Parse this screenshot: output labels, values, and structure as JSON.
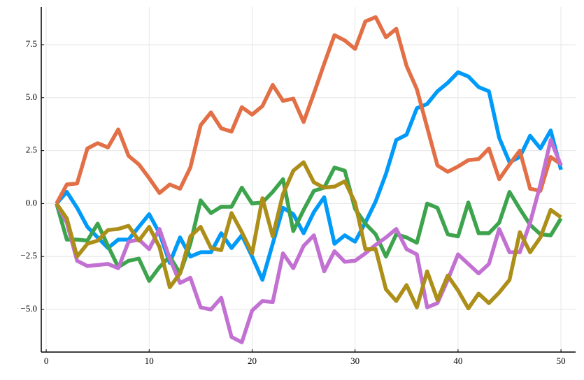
{
  "chart_data": {
    "type": "line",
    "x": [
      1,
      2,
      3,
      4,
      5,
      6,
      7,
      8,
      9,
      10,
      11,
      12,
      13,
      14,
      15,
      16,
      17,
      18,
      19,
      20,
      21,
      22,
      23,
      24,
      25,
      26,
      27,
      28,
      29,
      30,
      31,
      32,
      33,
      34,
      35,
      36,
      37,
      38,
      39,
      40,
      41,
      42,
      43,
      44,
      45,
      46,
      47,
      48,
      49,
      50
    ],
    "series": [
      {
        "color": "#009af9",
        "values": [
          0,
          0.55,
          -0.2,
          -1.1,
          -1.6,
          -2.1,
          -1.7,
          -1.7,
          -1.1,
          -0.5,
          -1.4,
          -2.8,
          -1.6,
          -2.5,
          -2.3,
          -2.3,
          -1.4,
          -2.1,
          -1.5,
          -2.5,
          -3.6,
          -1.9,
          -0.2,
          -0.5,
          -1.4,
          -0.4,
          0.3,
          -1.9,
          -1.5,
          -1.8,
          -0.9,
          0.1,
          1.4,
          3.0,
          3.25,
          4.5,
          4.7,
          5.3,
          5.7,
          6.2,
          6.0,
          5.5,
          5.3,
          3.1,
          1.95,
          2.2,
          3.2,
          2.6,
          3.45,
          1.6
        ]
      },
      {
        "color": "#e26f46",
        "values": [
          0,
          0.9,
          0.95,
          2.6,
          2.85,
          2.65,
          3.5,
          2.25,
          1.85,
          1.2,
          0.5,
          0.9,
          0.7,
          1.7,
          3.7,
          4.3,
          3.55,
          3.4,
          4.55,
          4.2,
          4.6,
          5.6,
          4.85,
          4.95,
          3.85,
          5.2,
          6.6,
          7.95,
          7.7,
          7.3,
          8.6,
          8.8,
          7.85,
          8.25,
          6.5,
          5.4,
          3.6,
          1.8,
          1.5,
          1.75,
          2.05,
          2.1,
          2.6,
          1.15,
          1.85,
          2.5,
          0.7,
          0.6,
          2.2,
          1.85
        ]
      },
      {
        "color": "#3da44d",
        "values": [
          0,
          -1.7,
          -1.7,
          -1.75,
          -0.95,
          -2.0,
          -3.0,
          -2.7,
          -2.6,
          -3.65,
          -3.0,
          -2.5,
          -3.3,
          -1.9,
          0.15,
          -0.45,
          -0.15,
          -0.15,
          0.75,
          0.0,
          0.05,
          0.55,
          1.15,
          -1.3,
          -0.3,
          0.6,
          0.75,
          1.7,
          1.55,
          -0.25,
          -0.95,
          -1.45,
          -2.5,
          -1.45,
          -1.6,
          -1.85,
          0.0,
          -0.2,
          -1.45,
          -1.55,
          0.05,
          -1.4,
          -1.4,
          -0.9,
          0.55,
          -0.25,
          -1.0,
          -1.45,
          -1.5,
          -0.7
        ]
      },
      {
        "color": "#c271d2",
        "values": [
          0,
          -0.9,
          -2.7,
          -2.95,
          -2.9,
          -2.85,
          -3.05,
          -1.8,
          -1.7,
          -2.15,
          -1.2,
          -2.6,
          -3.75,
          -3.5,
          -4.9,
          -5.0,
          -4.45,
          -6.3,
          -6.55,
          -5.05,
          -4.6,
          -4.65,
          -2.35,
          -3.05,
          -2.0,
          -1.5,
          -3.2,
          -2.25,
          -2.75,
          -2.7,
          -2.35,
          -1.95,
          -1.6,
          -1.2,
          -2.15,
          -2.4,
          -4.9,
          -4.7,
          -3.6,
          -2.4,
          -2.85,
          -3.3,
          -2.85,
          -1.2,
          -2.3,
          -2.3,
          -0.9,
          0.9,
          3.0,
          1.8
        ]
      },
      {
        "color": "#ac8e18",
        "values": [
          0,
          -0.7,
          -2.5,
          -1.9,
          -1.75,
          -1.25,
          -1.2,
          -1.05,
          -1.75,
          -1.1,
          -2.05,
          -3.95,
          -3.3,
          -1.55,
          -1.1,
          -2.1,
          -2.2,
          -0.45,
          -1.35,
          -2.35,
          0.25,
          -1.55,
          0.45,
          1.55,
          1.95,
          1.0,
          0.75,
          0.8,
          1.05,
          0.05,
          -2.15,
          -2.15,
          -4.05,
          -4.6,
          -3.85,
          -4.9,
          -3.2,
          -4.55,
          -3.4,
          -4.1,
          -4.95,
          -4.25,
          -4.7,
          -4.2,
          -3.6,
          -1.35,
          -2.3,
          -1.6,
          -0.3,
          -0.65
        ]
      }
    ],
    "xlim": [
      -0.48,
      51.42
    ],
    "ylim": [
      -7.01,
      9.28
    ],
    "xticks": [
      0,
      10,
      20,
      30,
      40,
      50
    ],
    "yticks": [
      {
        "value": -5,
        "label": "−5.0"
      },
      {
        "value": -2.5,
        "label": "−2.5"
      },
      {
        "value": 0,
        "label": "0.0"
      },
      {
        "value": 2.5,
        "label": "2.5"
      },
      {
        "value": 5,
        "label": "5.0"
      },
      {
        "value": 7.5,
        "label": "7.5"
      }
    ],
    "grid": true
  }
}
